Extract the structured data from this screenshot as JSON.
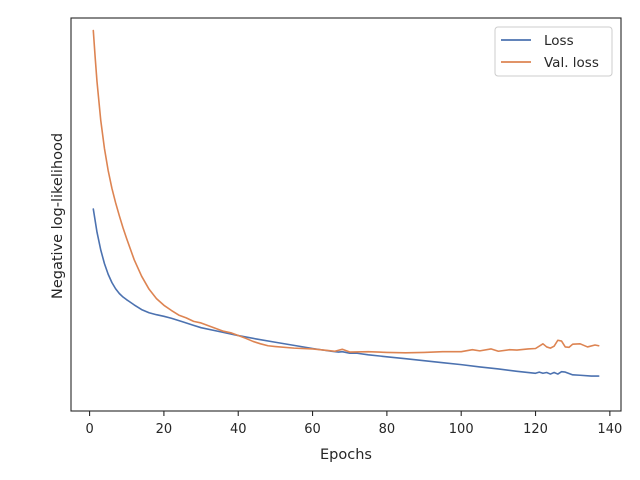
{
  "chart_data": {
    "type": "line",
    "title": "",
    "xlabel": "Epochs",
    "ylabel": "Negative log-likelihood",
    "xlim": [
      -5,
      143
    ],
    "ylim": [
      0,
      1
    ],
    "xticks": [
      0,
      20,
      40,
      60,
      80,
      100,
      120,
      140
    ],
    "yticks": [],
    "y_tick_labels_shown": false,
    "grid": false,
    "legend_position": "top-right",
    "series": [
      {
        "name": "Loss",
        "color": "#4c72b0",
        "x": [
          1,
          2,
          3,
          4,
          5,
          6,
          7,
          8,
          9,
          10,
          12,
          14,
          16,
          18,
          20,
          22,
          25,
          28,
          30,
          35,
          40,
          45,
          50,
          55,
          60,
          65,
          67,
          68,
          70,
          72,
          75,
          80,
          85,
          90,
          95,
          100,
          105,
          110,
          115,
          120,
          121,
          122,
          123,
          124,
          125,
          126,
          127,
          128,
          130,
          132,
          135,
          137
        ],
        "y": [
          0.514,
          0.455,
          0.41,
          0.375,
          0.348,
          0.327,
          0.311,
          0.299,
          0.29,
          0.283,
          0.27,
          0.258,
          0.25,
          0.245,
          0.241,
          0.236,
          0.227,
          0.218,
          0.212,
          0.202,
          0.192,
          0.183,
          0.175,
          0.167,
          0.159,
          0.152,
          0.15,
          0.151,
          0.147,
          0.147,
          0.143,
          0.138,
          0.133,
          0.128,
          0.123,
          0.118,
          0.112,
          0.107,
          0.101,
          0.096,
          0.099,
          0.096,
          0.098,
          0.094,
          0.098,
          0.094,
          0.1,
          0.099,
          0.092,
          0.091,
          0.089,
          0.089
        ]
      },
      {
        "name": "Val. loss",
        "color": "#dd8452",
        "x": [
          1,
          1.5,
          2,
          3,
          4,
          5,
          6,
          7,
          8,
          9,
          10,
          12,
          14,
          16,
          18,
          20,
          22,
          24,
          26,
          28,
          30,
          32,
          34,
          36,
          38,
          40,
          42,
          44,
          46,
          48,
          50,
          55,
          60,
          62,
          64,
          66,
          68,
          70,
          75,
          80,
          85,
          90,
          95,
          100,
          103,
          105,
          108,
          110,
          113,
          115,
          118,
          120,
          122,
          123,
          124,
          125,
          126,
          127,
          128,
          129,
          130,
          132,
          134,
          136,
          137
        ],
        "y": [
          0.968,
          0.9,
          0.838,
          0.74,
          0.668,
          0.612,
          0.567,
          0.53,
          0.497,
          0.466,
          0.438,
          0.385,
          0.343,
          0.31,
          0.286,
          0.269,
          0.256,
          0.244,
          0.237,
          0.228,
          0.224,
          0.217,
          0.21,
          0.203,
          0.199,
          0.192,
          0.185,
          0.177,
          0.171,
          0.166,
          0.164,
          0.16,
          0.158,
          0.156,
          0.154,
          0.152,
          0.157,
          0.15,
          0.151,
          0.149,
          0.148,
          0.149,
          0.151,
          0.151,
          0.156,
          0.153,
          0.158,
          0.152,
          0.156,
          0.155,
          0.158,
          0.159,
          0.171,
          0.163,
          0.16,
          0.165,
          0.18,
          0.178,
          0.163,
          0.162,
          0.17,
          0.171,
          0.163,
          0.168,
          0.166
        ]
      }
    ]
  }
}
